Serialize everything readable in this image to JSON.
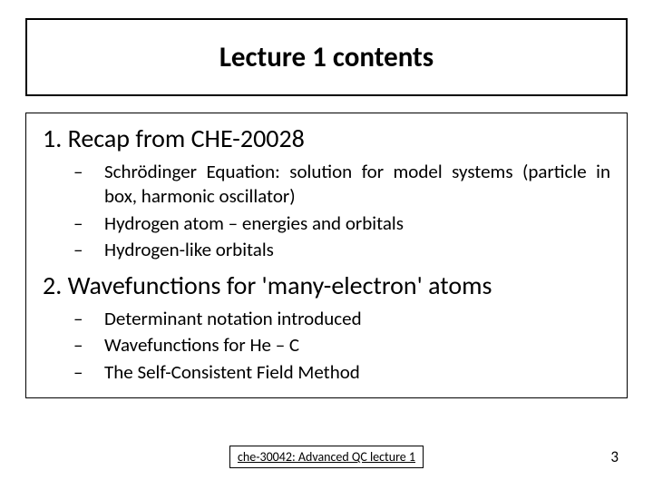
{
  "title": "Lecture 1 contents",
  "sections": [
    {
      "number": "1.",
      "heading": "Recap from CHE-20028",
      "items": [
        "Schrödinger Equation: solution for model systems (particle in box, harmonic oscillator)",
        "Hydrogen atom – energies and orbitals",
        "Hydrogen-like orbitals"
      ]
    },
    {
      "number": "2.",
      "heading": "Wavefunctions for 'many-electron' atoms",
      "items": [
        "Determinant notation introduced",
        "Wavefunctions for He – C",
        "The Self-Consistent Field Method"
      ]
    }
  ],
  "footer_label": "che-30042: Advanced QC lecture 1",
  "page_number": "3",
  "bullet": "–",
  "colors": {
    "background": "#ffffff",
    "border": "#000000",
    "text": "#000000"
  },
  "fonts": {
    "title_size": 31,
    "heading_size": 28,
    "body_size": 21,
    "footer_size": 14,
    "pagenum_size": 17
  }
}
